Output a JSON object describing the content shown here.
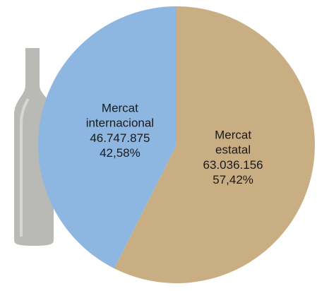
{
  "chart_data": {
    "type": "pie",
    "categories": [
      "Mercat estatal",
      "Mercat internacional"
    ],
    "values": [
      63036156,
      46747875
    ],
    "value_labels": [
      "63.036.156",
      "46.747.875"
    ],
    "percentages": [
      57.42,
      42.58
    ],
    "percentage_labels": [
      "57,42%",
      "42,58%"
    ],
    "colors": [
      "#c9ae84",
      "#8db6e0"
    ]
  }
}
